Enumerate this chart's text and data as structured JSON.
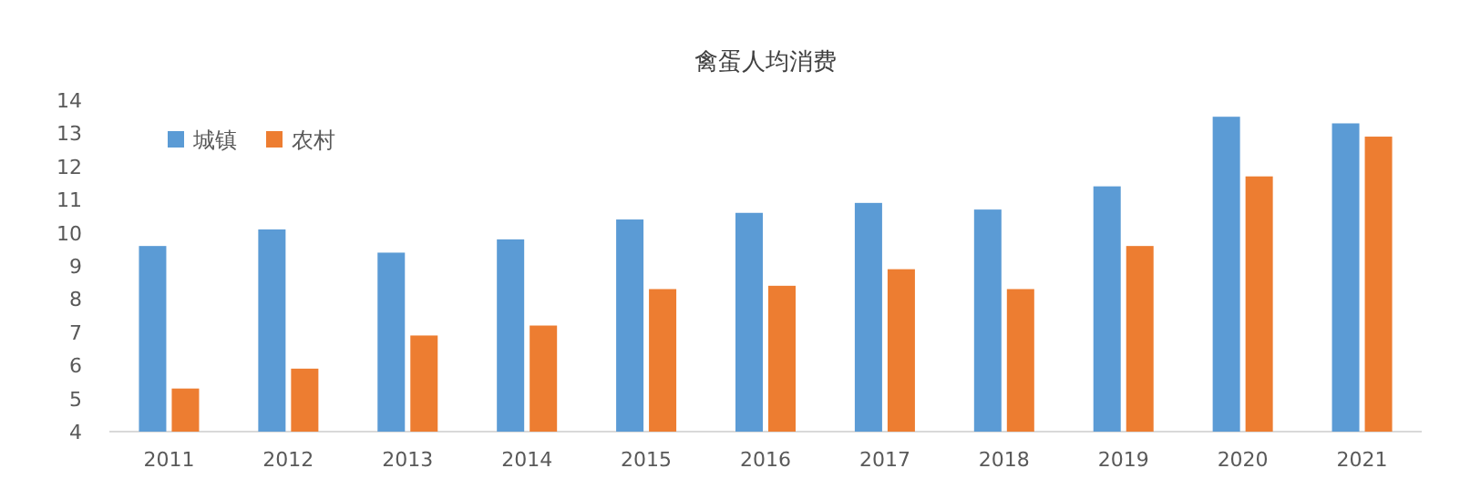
{
  "chart_data": {
    "type": "bar",
    "title": "禽蛋人均消费",
    "categories": [
      "2011",
      "2012",
      "2013",
      "2014",
      "2015",
      "2016",
      "2017",
      "2018",
      "2019",
      "2020",
      "2021"
    ],
    "series": [
      {
        "name": "城镇",
        "color": "#5b9bd5",
        "values": [
          9.6,
          10.1,
          9.4,
          9.8,
          10.4,
          10.6,
          10.9,
          10.7,
          11.4,
          13.5,
          13.3
        ]
      },
      {
        "name": "农村",
        "color": "#ed7d31",
        "values": [
          5.3,
          5.9,
          6.9,
          7.2,
          8.3,
          8.4,
          8.9,
          8.3,
          9.6,
          11.7,
          12.9
        ]
      }
    ],
    "ylim": [
      4,
      14
    ],
    "yticks": [
      4,
      5,
      6,
      7,
      8,
      9,
      10,
      11,
      12,
      13,
      14
    ],
    "grid": false,
    "legend": "top left"
  }
}
